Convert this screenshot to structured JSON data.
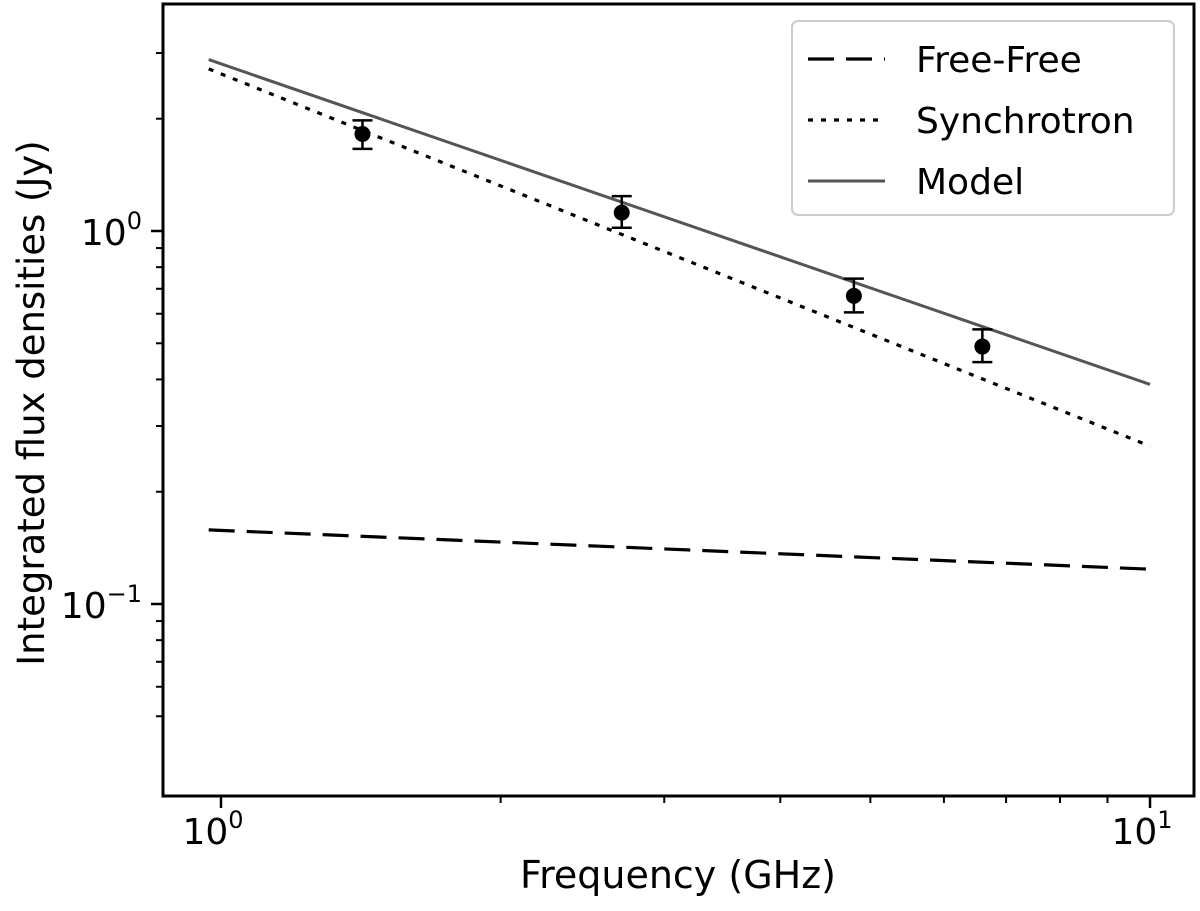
{
  "chart_data": {
    "type": "line",
    "xlabel": "Frequency (GHz)",
    "ylabel": "Integrated flux densities (Jy)",
    "x_scale": "log",
    "y_scale": "log",
    "xlim": [
      0.95,
      11.2
    ],
    "ylim": [
      0.043,
      4.0
    ],
    "x_major_ticks": [
      {
        "value": 1,
        "label_base": "10",
        "label_exp": "0"
      },
      {
        "value": 10,
        "label_base": "10",
        "label_exp": "1"
      }
    ],
    "y_major_ticks": [
      {
        "value": 0.1,
        "label_base": "10",
        "label_exp": "−1"
      },
      {
        "value": 1,
        "label_base": "10",
        "label_exp": "0"
      }
    ],
    "x_minor_ticks": [
      2,
      3,
      4,
      5,
      6,
      7,
      8,
      9
    ],
    "y_minor_ticks": [
      0.05,
      0.06,
      0.07,
      0.08,
      0.09,
      0.2,
      0.3,
      0.4,
      0.5,
      0.6,
      0.7,
      0.8,
      0.9,
      2,
      3
    ],
    "grid": false,
    "legend_position": "top-right",
    "series": [
      {
        "name": "Free-Free",
        "style": "dashed",
        "color": "#000000",
        "width": 3.2,
        "x": [
          0.97,
          10.0
        ],
        "y": [
          0.158,
          0.124
        ]
      },
      {
        "name": "Synchrotron",
        "style": "dotted",
        "color": "#000000",
        "width": 3.2,
        "x": [
          0.97,
          10.0
        ],
        "y": [
          2.72,
          0.265
        ]
      },
      {
        "name": "Model",
        "style": "solid",
        "color": "#555555",
        "width": 3,
        "x": [
          0.97,
          10.0
        ],
        "y": [
          2.88,
          0.388
        ]
      }
    ],
    "data_points": {
      "x": [
        1.42,
        2.7,
        4.8,
        6.6
      ],
      "y": [
        1.82,
        1.12,
        0.67,
        0.49
      ],
      "yerr_low": [
        1.66,
        1.02,
        0.605,
        0.445
      ],
      "yerr_high": [
        1.98,
        1.24,
        0.745,
        0.545
      ]
    }
  }
}
